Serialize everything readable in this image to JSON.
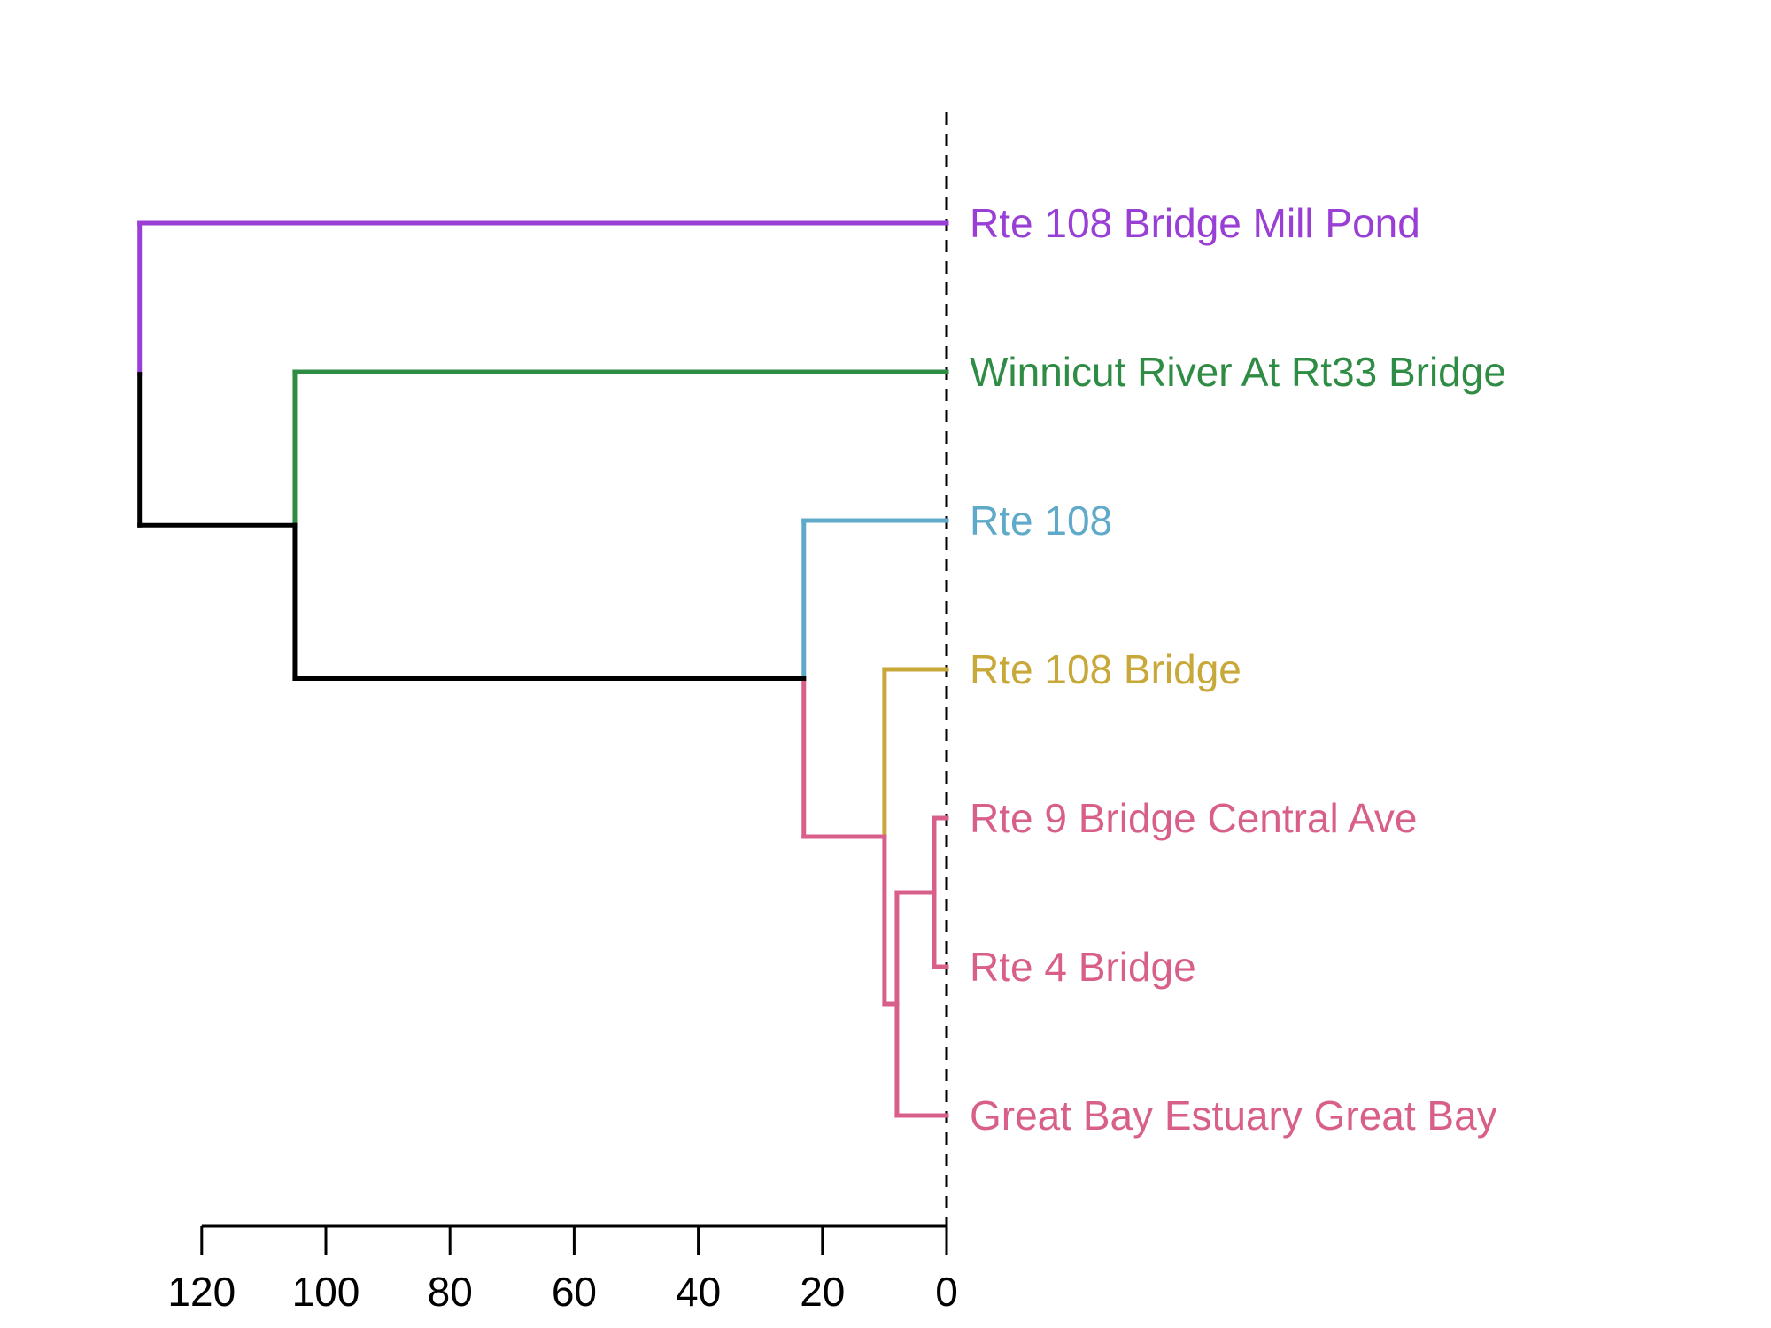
{
  "chart_data": {
    "type": "dendrogram",
    "orientation": "horizontal",
    "leaves": [
      {
        "id": "L1",
        "label": "Rte 108 Bridge Mill Pond",
        "color": "#9a3fd6"
      },
      {
        "id": "L2",
        "label": "Winnicut River At Rt33 Bridge",
        "color": "#2f8c45"
      },
      {
        "id": "L3",
        "label": "Rte 108",
        "color": "#5faac8"
      },
      {
        "id": "L4",
        "label": "Rte 108 Bridge",
        "color": "#c9a83a"
      },
      {
        "id": "L5",
        "label": "Rte 9 Bridge Central Ave",
        "color": "#d95f8b"
      },
      {
        "id": "L6",
        "label": "Rte 4 Bridge",
        "color": "#d95f8b"
      },
      {
        "id": "L7",
        "label": "Great Bay Estuary Great Bay",
        "color": "#d95f8b"
      }
    ],
    "merges": [
      {
        "id": "M1",
        "children": [
          "L5",
          "L6"
        ],
        "height": 2,
        "color": "#d95f8b"
      },
      {
        "id": "M2",
        "children": [
          "M1",
          "L7"
        ],
        "height": 8,
        "color": "#d95f8b"
      },
      {
        "id": "M3",
        "children": [
          "L4",
          "M2"
        ],
        "height": 10,
        "color": "#c9a83a",
        "stem_color": "#d95f8b"
      },
      {
        "id": "M4",
        "children": [
          "L3",
          "M3"
        ],
        "height": 23,
        "color": "#5faac8",
        "stem_color": "#000000"
      },
      {
        "id": "M5",
        "children": [
          "L2",
          "M4"
        ],
        "height": 105,
        "color": "#2f8c45",
        "stem_color": "#000000"
      },
      {
        "id": "M6",
        "children": [
          "L1",
          "M5"
        ],
        "height": 130,
        "color": "#9a3fd6",
        "stem_color": "#000000"
      }
    ],
    "x_axis": {
      "reversed": true,
      "ticks": [
        120,
        100,
        80,
        60,
        40,
        20,
        0
      ],
      "tick_labels": [
        "120",
        "100",
        "80",
        "60",
        "40",
        "20",
        "0"
      ]
    },
    "cut_line": {
      "at": 0,
      "style": "dashed"
    },
    "title": "",
    "xlabel": "",
    "ylabel": ""
  }
}
